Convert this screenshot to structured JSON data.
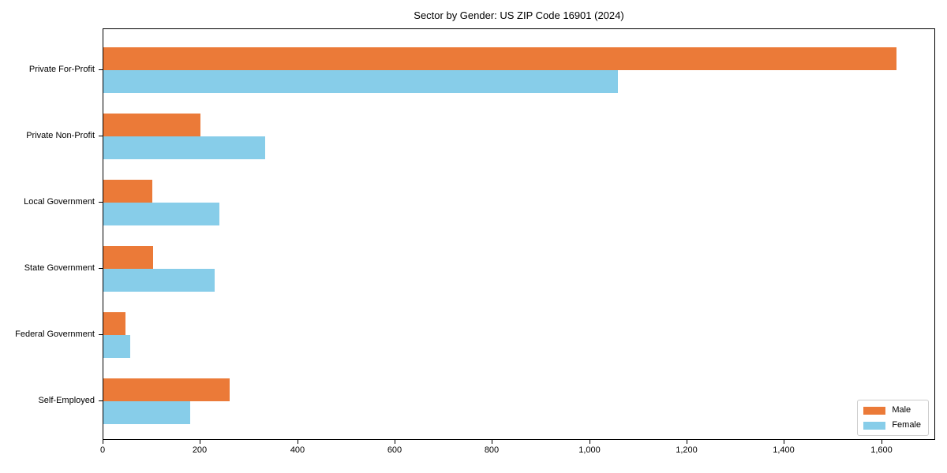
{
  "title": "Sector by Gender: US ZIP Code 16901 (2024)",
  "chart_data": {
    "type": "bar",
    "orientation": "horizontal",
    "title": "Sector by Gender: US ZIP Code 16901 (2024)",
    "categories": [
      "Private For-Profit",
      "Private Non-Profit",
      "Local Government",
      "State Government",
      "Federal Government",
      "Self-Employed"
    ],
    "series": [
      {
        "name": "Male",
        "color": "#EB7A38",
        "values": [
          1630,
          200,
          100,
          102,
          45,
          260
        ]
      },
      {
        "name": "Female",
        "color": "#87CDE9",
        "values": [
          1057,
          332,
          238,
          229,
          55,
          178
        ]
      }
    ],
    "xlabel": "",
    "ylabel": "",
    "xlim": [
      0,
      1711
    ],
    "x_ticks": [
      0,
      200,
      400,
      600,
      800,
      1000,
      1200,
      1400,
      1600
    ],
    "x_tick_labels": [
      "0",
      "200",
      "400",
      "600",
      "800",
      "1,000",
      "1,200",
      "1,400",
      "1,600"
    ],
    "grid": false,
    "legend_position": "lower right"
  },
  "colors": {
    "male": "#EB7A38",
    "female": "#87CDE9",
    "axis": "#000000",
    "legend_border": "#cccccc",
    "background": "#ffffff"
  }
}
